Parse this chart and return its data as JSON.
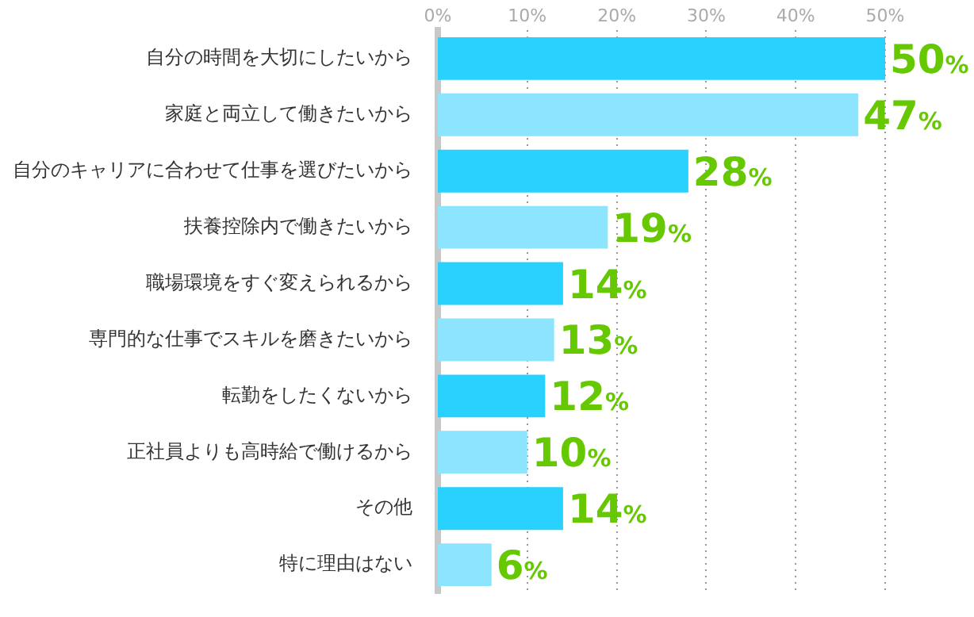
{
  "chart_data": {
    "type": "bar",
    "orientation": "horizontal",
    "categories": [
      "自分の時間を大切にしたいから",
      "家庭と両立して働きたいから",
      "自分のキャリアに合わせて仕事を選びたいから",
      "扶養控除内で働きたいから",
      "職場環境をすぐ変えられるから",
      "専門的な仕事でスキルを磨きたいから",
      "転勤をしたくないから",
      "正社員よりも高時給で働けるから",
      "その他",
      "特に理由はない"
    ],
    "values": [
      50,
      47,
      28,
      19,
      14,
      13,
      12,
      10,
      14,
      6
    ],
    "colors": [
      "#29d1fe",
      "#8de4fd",
      "#29d1fe",
      "#8de4fd",
      "#29d1fe",
      "#8de4fd",
      "#29d1fe",
      "#8de4fd",
      "#29d1fe",
      "#8de4fd"
    ],
    "value_labels": [
      "50%",
      "47%",
      "28%",
      "19%",
      "14%",
      "13%",
      "12%",
      "10%",
      "14%",
      "6%"
    ],
    "xlim": [
      0,
      50
    ],
    "xticks": [
      {
        "value": 0,
        "label": "0%"
      },
      {
        "value": 10,
        "label": "10%"
      },
      {
        "value": 20,
        "label": "20%"
      },
      {
        "value": 30,
        "label": "30%"
      },
      {
        "value": 40,
        "label": "40%"
      },
      {
        "value": 50,
        "label": "50%"
      }
    ],
    "grid": "x",
    "legend": false
  }
}
